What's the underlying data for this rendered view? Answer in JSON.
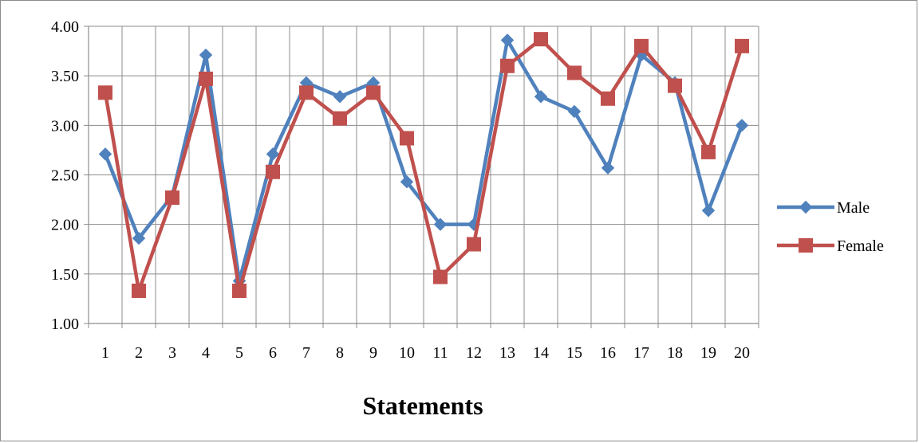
{
  "chart_data": {
    "type": "line",
    "title": "",
    "xlabel": "Statements",
    "ylabel": "",
    "categories": [
      "1",
      "2",
      "3",
      "4",
      "5",
      "6",
      "7",
      "8",
      "9",
      "10",
      "11",
      "12",
      "13",
      "14",
      "15",
      "16",
      "17",
      "18",
      "19",
      "20"
    ],
    "ylim": [
      1.0,
      4.0
    ],
    "yticks": [
      "1.00",
      "1.50",
      "2.00",
      "2.50",
      "3.00",
      "3.50",
      "4.00"
    ],
    "grid": true,
    "legend_position": "right",
    "series": [
      {
        "name": "Male",
        "color": "#4f81bd",
        "marker": "diamond",
        "values": [
          2.71,
          1.86,
          2.29,
          3.71,
          1.43,
          2.71,
          3.43,
          3.29,
          3.43,
          2.43,
          2.0,
          2.0,
          3.86,
          3.29,
          3.14,
          2.57,
          3.71,
          3.43,
          2.14,
          3.0
        ]
      },
      {
        "name": "Female",
        "color": "#c0504d",
        "marker": "square",
        "values": [
          3.33,
          1.33,
          2.27,
          3.47,
          1.33,
          2.53,
          3.33,
          3.07,
          3.33,
          2.87,
          1.47,
          1.8,
          3.6,
          3.87,
          3.53,
          3.27,
          3.8,
          3.4,
          2.73,
          3.8
        ]
      }
    ]
  }
}
